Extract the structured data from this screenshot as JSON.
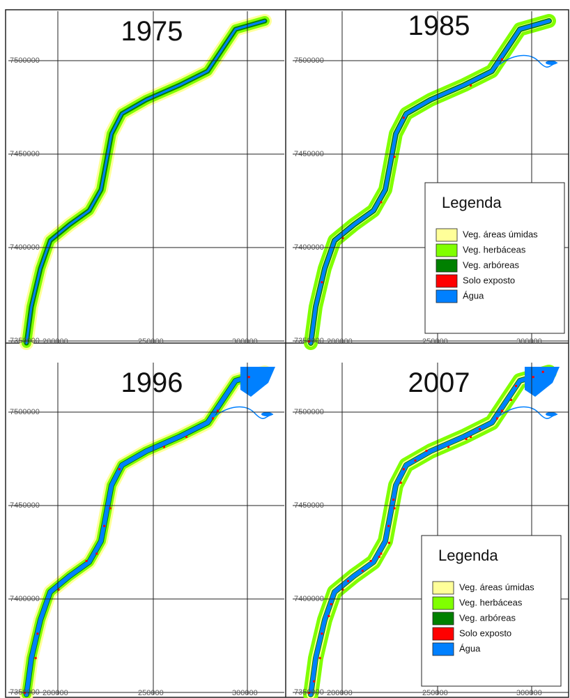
{
  "panels": [
    {
      "year": "1975",
      "y_axis": [
        "7500000",
        "7450000",
        "7400000",
        "7350000"
      ],
      "x_axis": [
        "200000",
        "250000",
        "300000"
      ]
    },
    {
      "year": "1985",
      "y_axis": [
        "7500000",
        "7450000",
        "7400000",
        "7350000"
      ],
      "x_axis": [
        "200000",
        "250000",
        "300000"
      ]
    },
    {
      "year": "1996",
      "y_axis": [
        "7500000",
        "7450000",
        "7400000",
        "7350000"
      ],
      "x_axis": [
        "200000",
        "250000",
        "300000"
      ]
    },
    {
      "year": "2007",
      "y_axis": [
        "7500000",
        "7450000",
        "7400000",
        "7350000"
      ],
      "x_axis": [
        "200000",
        "250000",
        "300000"
      ]
    }
  ],
  "legend": {
    "title": "Legenda",
    "items": [
      {
        "label": "Veg. áreas úmidas",
        "color": "#ffff99"
      },
      {
        "label": "Veg. herbáceas",
        "color": "#80ff00"
      },
      {
        "label": "Veg. arbóreas",
        "color": "#008000"
      },
      {
        "label": "Solo exposto",
        "color": "#ff0000"
      },
      {
        "label": "Água",
        "color": "#0080ff"
      }
    ]
  }
}
